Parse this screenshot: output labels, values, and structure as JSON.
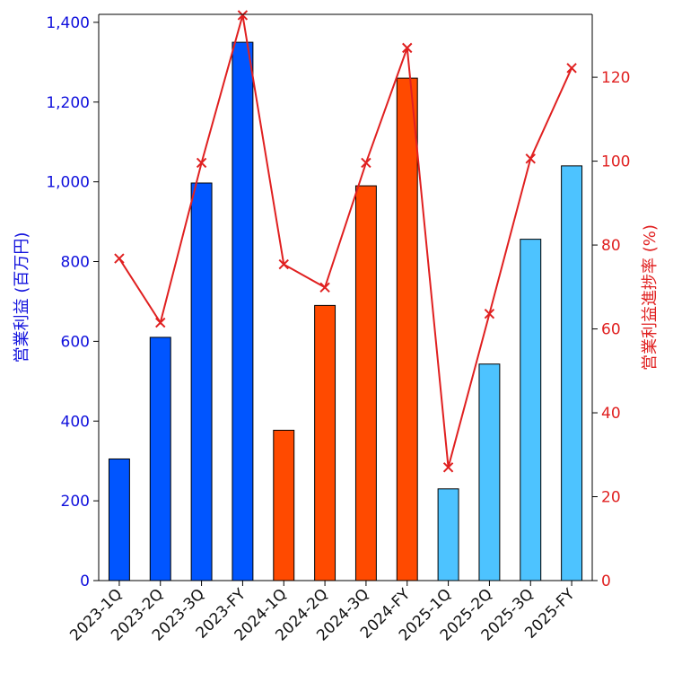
{
  "chart_data": {
    "type": "bar+line",
    "categories": [
      "2023-1Q",
      "2023-2Q",
      "2023-3Q",
      "2023-FY",
      "2024-1Q",
      "2024-2Q",
      "2024-3Q",
      "2024-FY",
      "2025-1Q",
      "2025-2Q",
      "2025-3Q",
      "2025-FY"
    ],
    "series": [
      {
        "name": "営業利益",
        "type": "bar",
        "axis": "left",
        "values": [
          305,
          610,
          997,
          1350,
          377,
          690,
          990,
          1260,
          230,
          543,
          856,
          1040
        ],
        "colors": [
          "#0055ff",
          "#0055ff",
          "#0055ff",
          "#0055ff",
          "#ff4a00",
          "#ff4a00",
          "#ff4a00",
          "#ff4a00",
          "#4dc3ff",
          "#4dc3ff",
          "#4dc3ff",
          "#4dc3ff"
        ]
      },
      {
        "name": "営業利益進捗率",
        "type": "line",
        "axis": "right",
        "marker": "x",
        "color": "#e02020",
        "values": [
          76.8,
          61.5,
          99.6,
          134.8,
          75.4,
          69.9,
          99.6,
          127.0,
          27.0,
          63.6,
          100.6,
          122.2
        ]
      }
    ],
    "ylabel": "営業利益 (百万円)",
    "ylabel_right": "営業利益進捗率 (%)",
    "ylim": [
      0,
      1420
    ],
    "ylim_right": [
      0,
      135
    ],
    "yticks": [
      "0",
      "200",
      "400",
      "600",
      "800",
      "1,000",
      "1,200",
      "1,400"
    ],
    "yticks_right": [
      "0",
      "20",
      "40",
      "60",
      "80",
      "100",
      "120"
    ],
    "grid": false,
    "legend": "none"
  }
}
